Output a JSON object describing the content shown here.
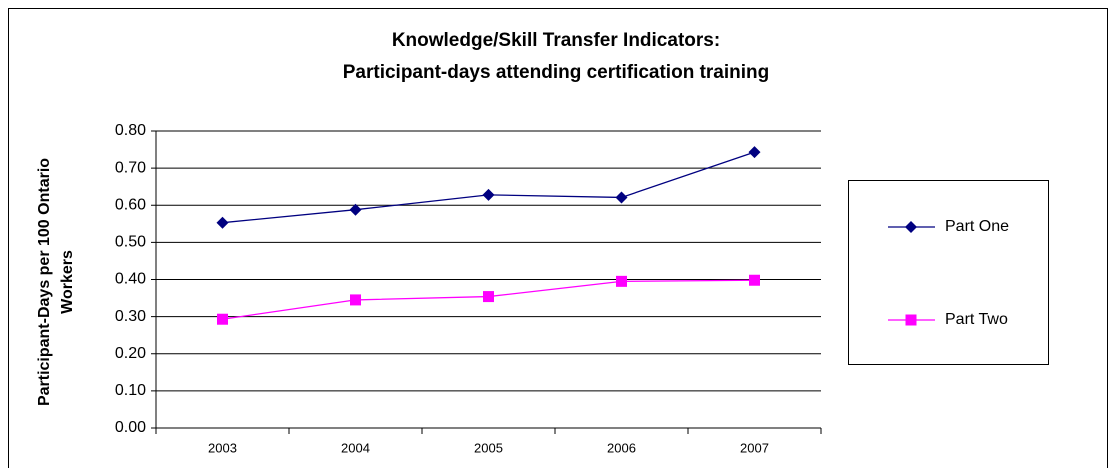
{
  "chart_data": {
    "type": "line",
    "title": [
      "Knowledge/Skill Transfer Indicators:",
      "Participant-days attending certification training"
    ],
    "ylabel": [
      "Participant-Days per 100 Ontario",
      "Workers"
    ],
    "categories": [
      "2003",
      "2004",
      "2005",
      "2006",
      "2007"
    ],
    "series": [
      {
        "name": "Part One",
        "color": "#000080",
        "marker": "diamond",
        "values": [
          0.553,
          0.588,
          0.628,
          0.621,
          0.743
        ]
      },
      {
        "name": "Part Two",
        "color": "#ff00ff",
        "marker": "square",
        "values": [
          0.293,
          0.345,
          0.354,
          0.395,
          0.398
        ]
      }
    ],
    "ylim": [
      0,
      0.8
    ],
    "yticks": [
      {
        "value": 0,
        "label": "0.00"
      },
      {
        "value": 0.1,
        "label": "0.10"
      },
      {
        "value": 0.2,
        "label": "0.20"
      },
      {
        "value": 0.3,
        "label": "0.30"
      },
      {
        "value": 0.4,
        "label": "0.40"
      },
      {
        "value": 0.5,
        "label": "0.50"
      },
      {
        "value": 0.6,
        "label": "0.60"
      },
      {
        "value": 0.7,
        "label": "0.70"
      },
      {
        "value": 0.8,
        "label": "0.80"
      }
    ],
    "grid": true,
    "legend": "right"
  }
}
